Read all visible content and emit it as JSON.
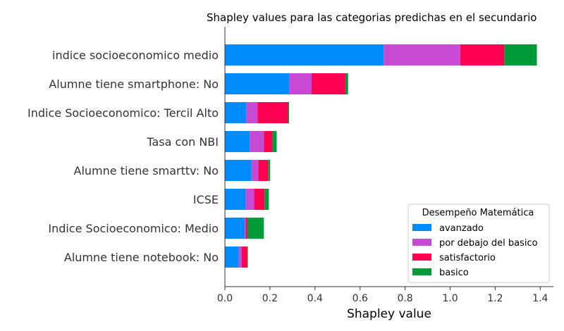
{
  "chart_data": {
    "type": "bar",
    "orientation": "horizontal",
    "stacked": true,
    "title": "Shapley values para las categorias predichas en el secundario",
    "xlabel": "Shapley value",
    "ylabel": "",
    "xlim": [
      0,
      1.45
    ],
    "xticks": [
      "0.0",
      "0.2",
      "0.4",
      "0.6",
      "0.8",
      "1.0",
      "1.2",
      "1.4"
    ],
    "grid": false,
    "legend_position": "bottom-right",
    "legend_title": "Desempeño Matemática",
    "categories": [
      "indice socioeconomico medio",
      "Alumne tiene smartphone: No",
      "Indice Socioeconomico: Tercil Alto",
      "Tasa con NBI",
      "Alumne tiene smarttv: No",
      "ICSE",
      "Indice Socioeconomico: Medio",
      "Alumne tiene notebook: No"
    ],
    "series": [
      {
        "name": "avanzado",
        "color": "#008bfb",
        "values": [
          0.705,
          0.285,
          0.095,
          0.11,
          0.118,
          0.092,
          0.088,
          0.062
        ]
      },
      {
        "name": "por debajo del basico",
        "color": "#c74ad5",
        "values": [
          0.34,
          0.1,
          0.05,
          0.063,
          0.03,
          0.038,
          0.004,
          0.013
        ]
      },
      {
        "name": "satisfactorio",
        "color": "#ff0051",
        "values": [
          0.195,
          0.15,
          0.135,
          0.038,
          0.045,
          0.046,
          0.008,
          0.025
        ]
      },
      {
        "name": "basico",
        "color": "#009a38",
        "values": [
          0.145,
          0.012,
          0.005,
          0.019,
          0.008,
          0.019,
          0.073,
          0.002
        ]
      }
    ]
  }
}
